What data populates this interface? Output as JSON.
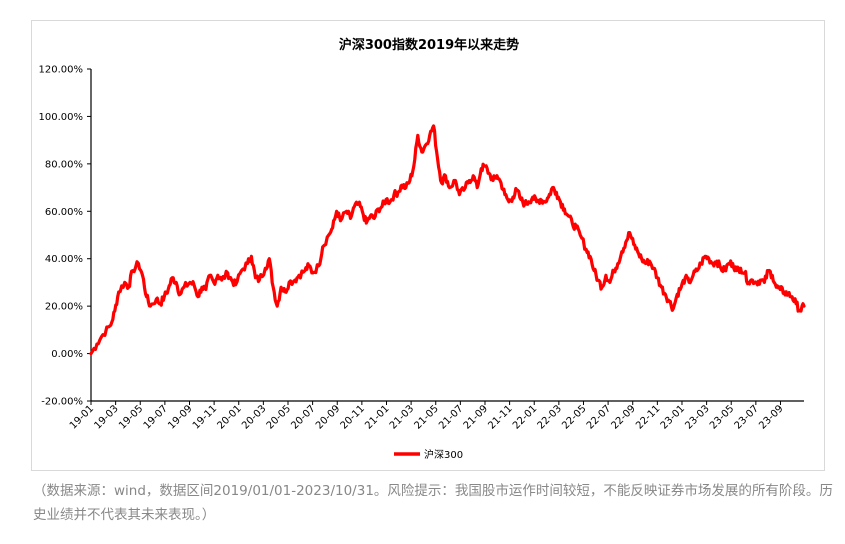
{
  "chart_data": {
    "type": "line",
    "title": "沪深300指数2019年以来走势",
    "xlabel": "",
    "ylabel": "",
    "ylim": [
      -20,
      120
    ],
    "yticks": [
      "120.00%",
      "100.00%",
      "80.00%",
      "60.00%",
      "40.00%",
      "20.00%",
      "0.00%",
      "-20.00%"
    ],
    "ytick_values": [
      120,
      100,
      80,
      60,
      40,
      20,
      0,
      -20
    ],
    "xticks": [
      "19-01",
      "19-03",
      "19-05",
      "19-07",
      "19-09",
      "19-11",
      "20-01",
      "20-03",
      "20-05",
      "20-07",
      "20-09",
      "20-11",
      "21-01",
      "21-03",
      "21-05",
      "21-07",
      "21-09",
      "21-11",
      "22-01",
      "22-03",
      "22-05",
      "22-07",
      "22-09",
      "22-11",
      "23-01",
      "23-03",
      "23-05",
      "23-07",
      "23-09"
    ],
    "grid": false,
    "legend_position": "bottom",
    "series": [
      {
        "name": "沪深300",
        "color": "#ff0000",
        "points": [
          [
            0.0,
            0
          ],
          [
            0.3,
            4
          ],
          [
            0.6,
            8
          ],
          [
            1.0,
            12
          ],
          [
            1.2,
            18
          ],
          [
            1.4,
            26
          ],
          [
            1.7,
            30
          ],
          [
            1.9,
            28
          ],
          [
            2.1,
            35
          ],
          [
            2.4,
            38
          ],
          [
            2.6,
            33
          ],
          [
            2.8,
            24
          ],
          [
            3.0,
            20
          ],
          [
            3.3,
            23
          ],
          [
            3.5,
            21
          ],
          [
            3.7,
            24
          ],
          [
            3.9,
            27
          ],
          [
            4.1,
            32
          ],
          [
            4.3,
            30
          ],
          [
            4.5,
            25
          ],
          [
            4.7,
            28
          ],
          [
            5.0,
            30
          ],
          [
            5.2,
            29
          ],
          [
            5.4,
            24
          ],
          [
            5.6,
            28
          ],
          [
            5.8,
            27
          ],
          [
            6.0,
            33
          ],
          [
            6.2,
            30
          ],
          [
            6.4,
            33
          ],
          [
            6.6,
            31
          ],
          [
            6.9,
            34
          ],
          [
            7.1,
            31
          ],
          [
            7.3,
            29
          ],
          [
            7.6,
            35
          ],
          [
            7.9,
            38
          ],
          [
            8.1,
            41
          ],
          [
            8.3,
            32
          ],
          [
            8.5,
            31
          ],
          [
            8.8,
            36
          ],
          [
            9.0,
            40
          ],
          [
            9.2,
            28
          ],
          [
            9.4,
            20
          ],
          [
            9.6,
            28
          ],
          [
            9.8,
            26
          ],
          [
            10.0,
            30
          ],
          [
            10.3,
            31
          ],
          [
            10.5,
            33
          ],
          [
            10.8,
            35
          ],
          [
            11.0,
            37
          ],
          [
            11.2,
            34
          ],
          [
            11.5,
            37
          ],
          [
            11.7,
            45
          ],
          [
            12.0,
            50
          ],
          [
            12.2,
            53
          ],
          [
            12.4,
            60
          ],
          [
            12.6,
            56
          ],
          [
            12.9,
            60
          ],
          [
            13.1,
            57
          ],
          [
            13.3,
            62
          ],
          [
            13.5,
            63
          ],
          [
            13.7,
            60
          ],
          [
            13.9,
            55
          ],
          [
            14.1,
            58
          ],
          [
            14.3,
            57
          ],
          [
            14.5,
            61
          ],
          [
            14.7,
            62
          ],
          [
            14.9,
            65
          ],
          [
            15.1,
            64
          ],
          [
            15.3,
            67
          ],
          [
            15.5,
            68
          ],
          [
            15.7,
            71
          ],
          [
            15.9,
            70
          ],
          [
            16.1,
            73
          ],
          [
            16.3,
            79
          ],
          [
            16.5,
            92
          ],
          [
            16.7,
            85
          ],
          [
            16.9,
            88
          ],
          [
            17.1,
            92
          ],
          [
            17.3,
            96
          ],
          [
            17.5,
            82
          ],
          [
            17.7,
            72
          ],
          [
            17.9,
            75
          ],
          [
            18.1,
            70
          ],
          [
            18.4,
            73
          ],
          [
            18.6,
            67
          ],
          [
            18.9,
            70
          ],
          [
            19.1,
            73
          ],
          [
            19.3,
            75
          ],
          [
            19.5,
            70
          ],
          [
            19.7,
            78
          ],
          [
            19.9,
            79
          ],
          [
            20.1,
            76
          ],
          [
            20.3,
            73
          ],
          [
            20.5,
            75
          ],
          [
            20.7,
            72
          ],
          [
            20.9,
            67
          ],
          [
            21.1,
            64
          ],
          [
            21.3,
            66
          ],
          [
            21.5,
            69
          ],
          [
            21.7,
            65
          ],
          [
            21.9,
            63
          ],
          [
            22.1,
            64
          ],
          [
            22.3,
            66
          ],
          [
            22.5,
            64
          ],
          [
            22.7,
            65
          ],
          [
            22.9,
            64
          ],
          [
            23.1,
            66
          ],
          [
            23.3,
            70
          ],
          [
            23.5,
            68
          ],
          [
            23.7,
            64
          ],
          [
            23.9,
            61
          ],
          [
            24.1,
            58
          ],
          [
            24.3,
            55
          ],
          [
            24.5,
            53
          ],
          [
            24.7,
            50
          ],
          [
            25.0,
            44
          ],
          [
            25.2,
            41
          ],
          [
            25.4,
            35
          ],
          [
            25.6,
            31
          ],
          [
            25.8,
            28
          ],
          [
            26.0,
            33
          ],
          [
            26.2,
            30
          ],
          [
            26.4,
            35
          ],
          [
            26.6,
            38
          ],
          [
            26.8,
            43
          ],
          [
            27.0,
            47
          ],
          [
            27.2,
            51
          ],
          [
            27.4,
            46
          ],
          [
            27.6,
            43
          ],
          [
            27.8,
            40
          ],
          [
            28.0,
            38
          ],
          [
            28.2,
            39
          ],
          [
            28.4,
            36
          ],
          [
            28.6,
            32
          ],
          [
            28.8,
            28
          ],
          [
            29.0,
            25
          ],
          [
            29.2,
            22
          ],
          [
            29.4,
            19
          ],
          [
            29.6,
            25
          ],
          [
            29.8,
            28
          ],
          [
            30.0,
            32
          ],
          [
            30.2,
            30
          ],
          [
            30.4,
            33
          ],
          [
            30.6,
            35
          ],
          [
            30.8,
            38
          ],
          [
            31.0,
            41
          ],
          [
            31.2,
            40
          ],
          [
            31.4,
            38
          ],
          [
            31.6,
            39
          ],
          [
            31.8,
            36
          ],
          [
            32.0,
            35
          ],
          [
            32.2,
            38
          ],
          [
            32.4,
            38
          ],
          [
            32.6,
            35
          ],
          [
            32.8,
            36
          ],
          [
            33.0,
            34
          ],
          [
            33.2,
            30
          ],
          [
            33.4,
            31
          ],
          [
            33.6,
            30
          ],
          [
            33.8,
            31
          ],
          [
            34.0,
            30
          ],
          [
            34.2,
            35
          ],
          [
            34.4,
            33
          ],
          [
            34.6,
            28
          ],
          [
            34.8,
            27
          ],
          [
            35.0,
            26
          ],
          [
            35.2,
            25
          ],
          [
            35.4,
            24
          ],
          [
            35.6,
            21
          ],
          [
            35.8,
            18
          ],
          [
            36.0,
            20
          ]
        ]
      }
    ],
    "x_month_span": [
      0,
      36
    ]
  },
  "caption": "（数据来源：wind，数据区间2019/01/01-2023/10/31。风险提示：我国股市运作时间较短，不能反映证券市场发展的所有阶段。历史业绩并不代表其未来表现。）"
}
